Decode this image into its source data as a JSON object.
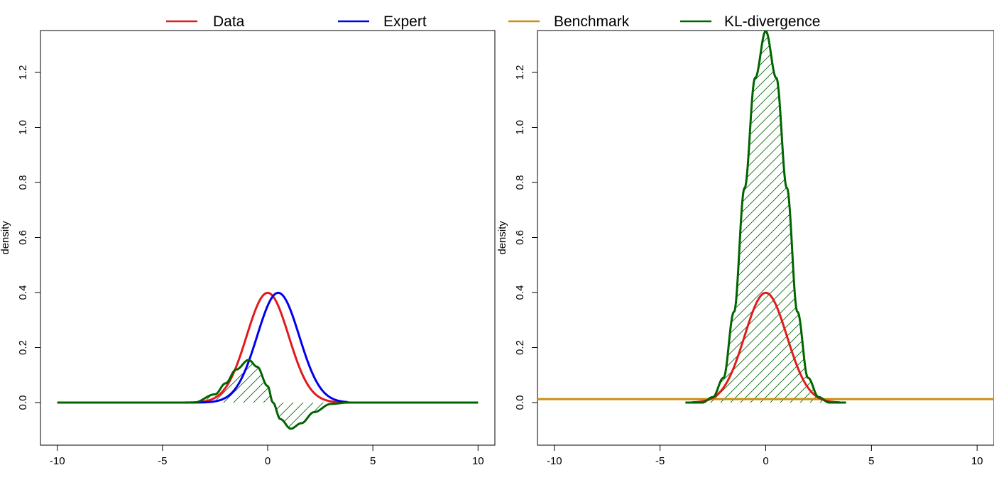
{
  "legend": [
    {
      "label": "Data",
      "color": "#e31a1c"
    },
    {
      "label": "Expert",
      "color": "#0000ee"
    },
    {
      "label": "Benchmark",
      "color": "#c8900a"
    },
    {
      "label": "KL-divergence",
      "color": "#006400"
    }
  ],
  "chart_data": [
    {
      "type": "line",
      "title": "",
      "xlabel": "",
      "ylabel": "density",
      "xlim": [
        -10.8,
        10.8
      ],
      "ylim": [
        -0.16,
        1.35
      ],
      "xticks": [
        "-10",
        "-5",
        "0",
        "5",
        "10"
      ],
      "yticks": [
        "0.0",
        "0.2",
        "0.4",
        "0.6",
        "0.8",
        "1.0",
        "1.2"
      ],
      "grid": false,
      "legend_position": "top",
      "series": [
        {
          "name": "Data",
          "color": "#e31a1c",
          "distribution": "normal",
          "mean": 0,
          "sd": 1,
          "x_range": [
            -10,
            10
          ],
          "peak": 0.399
        },
        {
          "name": "Expert",
          "color": "#0000ee",
          "distribution": "normal",
          "mean": 0.5,
          "sd": 1,
          "x_range": [
            -3.5,
            3.8
          ],
          "peak": 0.399
        },
        {
          "name": "KL-divergence",
          "color": "#006400",
          "hatched_fill": true,
          "x_range": [
            -10,
            10
          ],
          "points": [
            [
              -3.5,
              0.0
            ],
            [
              -2.5,
              0.03
            ],
            [
              -2.0,
              0.07
            ],
            [
              -1.5,
              0.12
            ],
            [
              -0.9,
              0.155
            ],
            [
              -0.5,
              0.13
            ],
            [
              0.0,
              0.06
            ],
            [
              0.25,
              0.0
            ],
            [
              0.6,
              -0.06
            ],
            [
              1.1,
              -0.095
            ],
            [
              1.6,
              -0.075
            ],
            [
              2.2,
              -0.035
            ],
            [
              3.0,
              -0.005
            ],
            [
              3.8,
              0.0
            ]
          ]
        }
      ]
    },
    {
      "type": "line",
      "title": "",
      "xlabel": "",
      "ylabel": "density",
      "xlim": [
        -10.8,
        10.8
      ],
      "ylim": [
        -0.16,
        1.35
      ],
      "xticks": [
        "-10",
        "-5",
        "0",
        "5",
        "10"
      ],
      "yticks": [
        "0.0",
        "0.2",
        "0.4",
        "0.6",
        "0.8",
        "1.0",
        "1.2"
      ],
      "grid": false,
      "legend_position": "top",
      "series": [
        {
          "name": "Benchmark",
          "color": "#c8900a",
          "distribution": "uniform",
          "value": 0.0125,
          "x_range": [
            -11,
            11
          ]
        },
        {
          "name": "Data",
          "color": "#e31a1c",
          "distribution": "normal",
          "mean": 0,
          "sd": 1,
          "x_range": [
            -3.5,
            3.5
          ],
          "peak": 0.399
        },
        {
          "name": "KL-divergence",
          "color": "#006400",
          "hatched_fill": true,
          "x_range": [
            -3.8,
            3.8
          ],
          "peak": 1.35,
          "points": [
            [
              -3.8,
              0.0
            ],
            [
              -3.0,
              0.0
            ],
            [
              -2.5,
              0.02
            ],
            [
              -2.0,
              0.09
            ],
            [
              -1.5,
              0.33
            ],
            [
              -1.0,
              0.78
            ],
            [
              -0.5,
              1.18
            ],
            [
              0.0,
              1.35
            ],
            [
              0.5,
              1.18
            ],
            [
              1.0,
              0.78
            ],
            [
              1.5,
              0.33
            ],
            [
              2.0,
              0.09
            ],
            [
              2.5,
              0.02
            ],
            [
              3.0,
              0.0
            ],
            [
              3.8,
              0.0
            ]
          ]
        }
      ]
    }
  ]
}
